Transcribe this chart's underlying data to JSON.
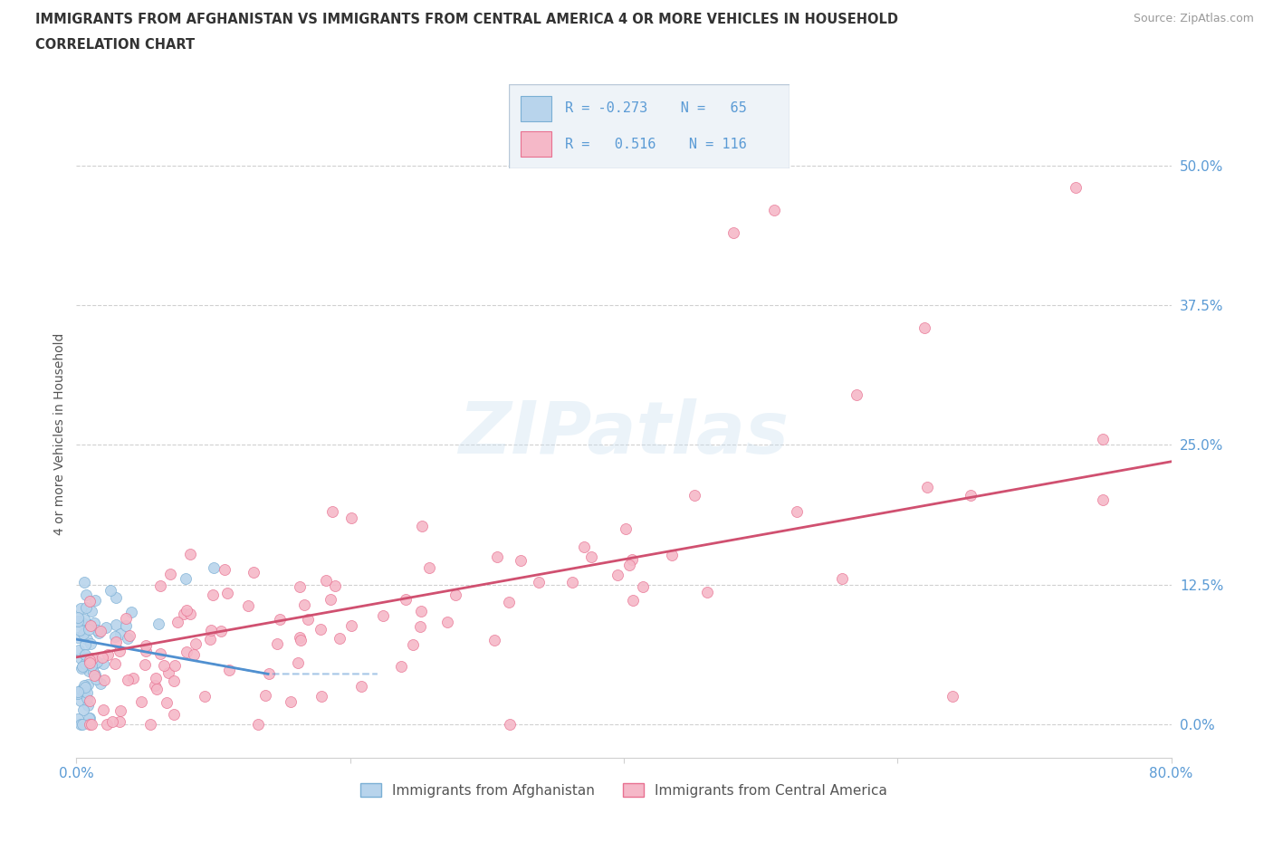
{
  "title_line1": "IMMIGRANTS FROM AFGHANISTAN VS IMMIGRANTS FROM CENTRAL AMERICA 4 OR MORE VEHICLES IN HOUSEHOLD",
  "title_line2": "CORRELATION CHART",
  "source_text": "Source: ZipAtlas.com",
  "ylabel": "4 or more Vehicles in Household",
  "xlim": [
    0.0,
    0.8
  ],
  "ylim": [
    -0.03,
    0.55
  ],
  "yticks": [
    0.0,
    0.125,
    0.25,
    0.375,
    0.5
  ],
  "ytick_labels": [
    "0.0%",
    "12.5%",
    "25.0%",
    "37.5%",
    "50.0%"
  ],
  "afghanistan_color": "#b8d4ec",
  "afghanistan_edge": "#7aafd4",
  "central_america_color": "#f5b8c8",
  "central_america_edge": "#e87090",
  "trend_afghanistan_color": "#5090d0",
  "trend_central_america_color": "#d05070",
  "r_afghanistan": -0.273,
  "n_afghanistan": 65,
  "r_central_america": 0.516,
  "n_central_america": 116,
  "legend_label_afghanistan": "Immigrants from Afghanistan",
  "legend_label_central_america": "Immigrants from Central America",
  "watermark": "ZIPatlas",
  "tick_color": "#5b9bd5",
  "grid_color": "#d0d0d0",
  "title_color": "#333333",
  "source_color": "#999999",
  "ylabel_color": "#555555"
}
